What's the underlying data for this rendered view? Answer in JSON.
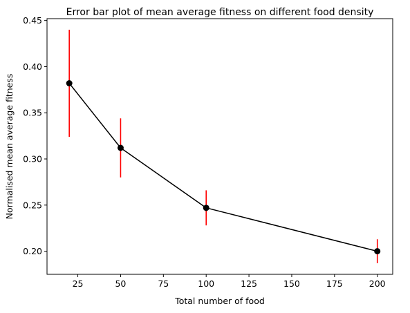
{
  "chart_data": {
    "type": "line",
    "title": "Error bar plot of mean average fitness on different food density",
    "xlabel": "Total number of food",
    "ylabel": "Normalised mean average fitness",
    "xlim": [
      7,
      209
    ],
    "ylim": [
      0.175,
      0.452
    ],
    "xticks": [
      25,
      50,
      75,
      100,
      125,
      150,
      175,
      200
    ],
    "yticks": [
      0.2,
      0.25,
      0.3,
      0.35,
      0.4,
      0.45
    ],
    "xtick_labels": [
      "25",
      "50",
      "75",
      "100",
      "125",
      "150",
      "175",
      "200"
    ],
    "ytick_labels": [
      "0.20",
      "0.25",
      "0.30",
      "0.35",
      "0.40",
      "0.45"
    ],
    "grid": false,
    "series": [
      {
        "x": [
          20,
          50,
          100,
          200
        ],
        "y": [
          0.382,
          0.312,
          0.247,
          0.2
        ],
        "yerr": [
          0.058,
          0.032,
          0.019,
          0.013
        ],
        "line_color": "#000000",
        "marker_color": "#000000",
        "errorbar_color": "#ff0000"
      }
    ]
  }
}
